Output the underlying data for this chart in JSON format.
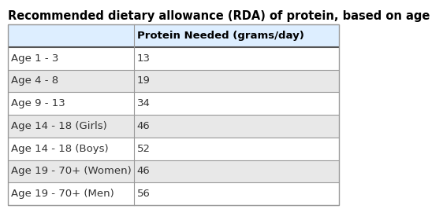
{
  "title": "Recommended dietary allowance (RDA) of protein, based on age",
  "col_headers": [
    "",
    "Protein Needed (grams/day)"
  ],
  "rows": [
    [
      "Age 1 - 3",
      "13"
    ],
    [
      "Age 4 - 8",
      "19"
    ],
    [
      "Age 9 - 13",
      "34"
    ],
    [
      "Age 14 - 18 (Girls)",
      "46"
    ],
    [
      "Age 14 - 18 (Boys)",
      "52"
    ],
    [
      "Age 19 - 70+ (Women)",
      "46"
    ],
    [
      "Age 19 - 70+ (Men)",
      "56"
    ]
  ],
  "header_bg": "#ddeeff",
  "row_bg_odd": "#ffffff",
  "row_bg_even": "#e8e8e8",
  "border_color": "#999999",
  "header_border_color": "#555555",
  "title_color": "#000000",
  "text_color": "#333333",
  "col_split": 0.38,
  "title_fontsize": 10.5,
  "header_fontsize": 9.5,
  "cell_fontsize": 9.5
}
